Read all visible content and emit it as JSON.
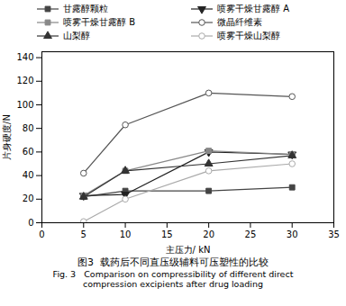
{
  "chart_data": {
    "type": "line",
    "title": "图3  载药后不同直压级辅料可压塑性的比较",
    "subtitle": [
      "Fig. 3   Comparison on compressibility of different direct",
      "compression excipients after drug loading"
    ],
    "xlabel": "主压力/ kN",
    "ylabel": "片身硬度/N",
    "x": [
      5,
      10,
      20,
      30
    ],
    "series": [
      {
        "name": "甘露醇颗粒",
        "values": [
          22,
          27,
          27,
          30
        ],
        "color": "#444444",
        "marker": "square",
        "line_style": "solid"
      },
      {
        "name": "喷雾干燥甘露醇 A",
        "values": [
          23,
          24,
          60,
          58
        ],
        "color": "#222222",
        "marker": "triangle-down",
        "line_style": "solid"
      },
      {
        "name": "喷雾干燥甘露醇 B",
        "values": [
          23,
          44,
          61,
          58
        ],
        "color": "#888888",
        "marker": "square",
        "line_style": "solid"
      },
      {
        "name": "微晶纤维素",
        "values": [
          42,
          83,
          110,
          107
        ],
        "color": "#555555",
        "marker": "open-circle",
        "line_style": "solid"
      },
      {
        "name": "山梨醇",
        "values": [
          22,
          44,
          50,
          57
        ],
        "color": "#333333",
        "marker": "triangle-up",
        "line_style": "solid"
      },
      {
        "name": "喷雾干燥山梨醇",
        "values": [
          1,
          20,
          44,
          50
        ],
        "color": "#aaaaaa",
        "marker": "open-circle",
        "line_style": "solid"
      }
    ],
    "xlim": [
      0,
      35
    ],
    "ylim": [
      0,
      145
    ],
    "xticks": [
      0,
      5,
      10,
      15,
      20,
      25,
      30,
      35
    ],
    "yticks": [
      0,
      20,
      40,
      60,
      80,
      100,
      120,
      140
    ],
    "legend": "top"
  }
}
